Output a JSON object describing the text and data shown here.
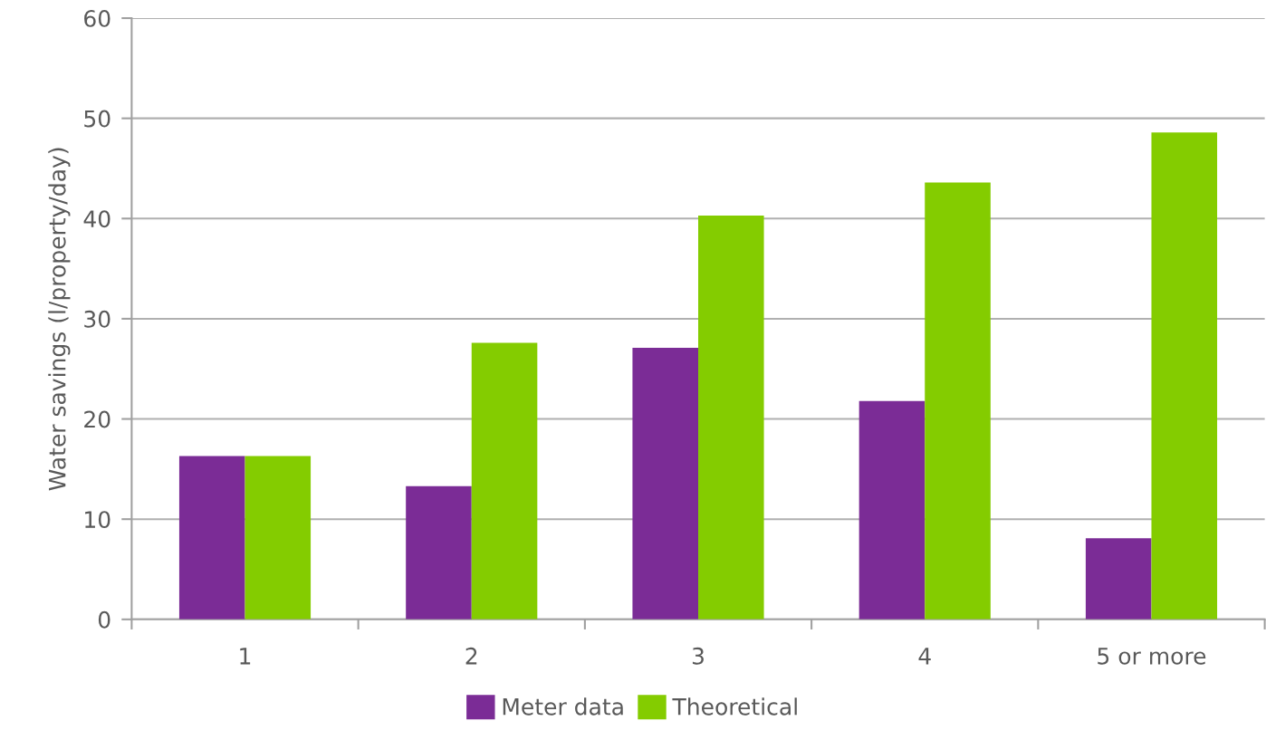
{
  "chart_data": {
    "type": "bar",
    "ylabel": "Water savings (l/property/day)",
    "categories": [
      "1",
      "2",
      "3",
      "4",
      "5 or more"
    ],
    "series": [
      {
        "name": "Meter data",
        "color": "#7b2c96",
        "values": [
          16.3,
          13.3,
          27.1,
          21.8,
          8.1
        ]
      },
      {
        "name": "Theoretical",
        "color": "#84cc00",
        "values": [
          16.3,
          27.6,
          40.3,
          43.6,
          48.6
        ]
      }
    ],
    "ylim": [
      0,
      60
    ],
    "yticks": [
      0,
      10,
      20,
      30,
      40,
      50,
      60
    ],
    "grid": "y",
    "legend": "bottom"
  }
}
